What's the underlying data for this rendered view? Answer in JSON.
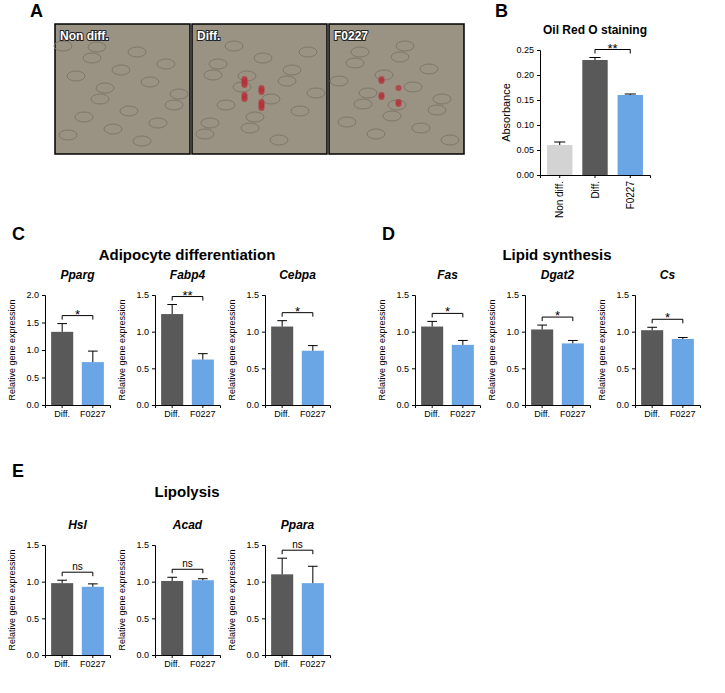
{
  "panels": [
    {
      "letter": "A",
      "images": [
        "Non diff.",
        "Diff.",
        "F0227"
      ]
    },
    {
      "letter": "B"
    },
    {
      "letter": "C",
      "title": "Adipocyte differentiation"
    },
    {
      "letter": "D",
      "title": "Lipid synthesis"
    },
    {
      "letter": "E",
      "title": "Lipolysis"
    }
  ],
  "chart_data": [
    {
      "type": "bar",
      "title": "Oil Red O staining",
      "ylabel": "Absorbance",
      "categories": [
        "Non diff.",
        "Diff.",
        "F0227"
      ],
      "values": [
        0.06,
        0.23,
        0.16
      ],
      "errors": [
        0.006,
        0.005,
        0.002
      ],
      "colors": [
        "#d3d3d3",
        "#595959",
        "#6aa6e6"
      ],
      "ylim": [
        0,
        0.25
      ],
      "yticks": [
        {
          "value": 0,
          "label": "0.00"
        },
        {
          "value": 0.05,
          "label": "0.05"
        },
        {
          "value": 0.1,
          "label": "0.10"
        },
        {
          "value": 0.15,
          "label": "0.15"
        },
        {
          "value": 0.2,
          "label": "0.20"
        },
        {
          "value": 0.25,
          "label": "0.25"
        }
      ],
      "significance": {
        "pair": [
          "Diff.",
          "F0227"
        ],
        "label": "**"
      }
    },
    {
      "type": "bar",
      "title": "Pparg",
      "ylabel": "Relative gene expression",
      "categories": [
        "Diff.",
        "F0227"
      ],
      "values": [
        1.33,
        0.78
      ],
      "errors": [
        0.15,
        0.2
      ],
      "colors": [
        "#595959",
        "#6aa6e6"
      ],
      "ylim": [
        0,
        2
      ],
      "yticks": [
        {
          "value": 0,
          "label": "0.0"
        },
        {
          "value": 0.5,
          "label": "0.5"
        },
        {
          "value": 1,
          "label": "1.0"
        },
        {
          "value": 1.5,
          "label": "1.5"
        },
        {
          "value": 2,
          "label": "2.0"
        }
      ],
      "significance": {
        "pair": [
          "Diff.",
          "F0227"
        ],
        "label": "*"
      }
    },
    {
      "type": "bar",
      "title": "Fabp4",
      "ylabel": "Relative gene expression",
      "categories": [
        "Diff.",
        "F0227"
      ],
      "values": [
        1.24,
        0.62
      ],
      "errors": [
        0.13,
        0.08
      ],
      "colors": [
        "#595959",
        "#6aa6e6"
      ],
      "ylim": [
        0,
        1.5
      ],
      "yticks": [
        {
          "value": 0,
          "label": "0.0"
        },
        {
          "value": 0.5,
          "label": "0.5"
        },
        {
          "value": 1,
          "label": "1.0"
        },
        {
          "value": 1.5,
          "label": "1.5"
        }
      ],
      "significance": {
        "pair": [
          "Diff.",
          "F0227"
        ],
        "label": "**"
      }
    },
    {
      "type": "bar",
      "title": "Cebpa",
      "ylabel": "Relative gene expression",
      "categories": [
        "Diff.",
        "F0227"
      ],
      "values": [
        1.07,
        0.74
      ],
      "errors": [
        0.08,
        0.07
      ],
      "colors": [
        "#595959",
        "#6aa6e6"
      ],
      "ylim": [
        0,
        1.5
      ],
      "yticks": [
        {
          "value": 0,
          "label": "0.0"
        },
        {
          "value": 0.5,
          "label": "0.5"
        },
        {
          "value": 1,
          "label": "1.0"
        },
        {
          "value": 1.5,
          "label": "1.5"
        }
      ],
      "significance": {
        "pair": [
          "Diff.",
          "F0227"
        ],
        "label": "*"
      }
    },
    {
      "type": "bar",
      "title": "Fas",
      "ylabel": "Relative gene expression",
      "categories": [
        "Diff.",
        "F0227"
      ],
      "values": [
        1.07,
        0.82
      ],
      "errors": [
        0.07,
        0.06
      ],
      "colors": [
        "#595959",
        "#6aa6e6"
      ],
      "ylim": [
        0,
        1.5
      ],
      "yticks": [
        {
          "value": 0,
          "label": "0.0"
        },
        {
          "value": 0.5,
          "label": "0.5"
        },
        {
          "value": 1,
          "label": "1.0"
        },
        {
          "value": 1.5,
          "label": "1.5"
        }
      ],
      "significance": {
        "pair": [
          "Diff.",
          "F0227"
        ],
        "label": "*"
      }
    },
    {
      "type": "bar",
      "title": "Dgat2",
      "ylabel": "Relative gene expression",
      "categories": [
        "Diff.",
        "F0227"
      ],
      "values": [
        1.03,
        0.84
      ],
      "errors": [
        0.06,
        0.04
      ],
      "colors": [
        "#595959",
        "#6aa6e6"
      ],
      "ylim": [
        0,
        1.5
      ],
      "yticks": [
        {
          "value": 0,
          "label": "0.0"
        },
        {
          "value": 0.5,
          "label": "0.5"
        },
        {
          "value": 1,
          "label": "1.0"
        },
        {
          "value": 1.5,
          "label": "1.5"
        }
      ],
      "significance": {
        "pair": [
          "Diff.",
          "F0227"
        ],
        "label": "*"
      }
    },
    {
      "type": "bar",
      "title": "Cs",
      "ylabel": "Relative gene expression",
      "categories": [
        "Diff.",
        "F0227"
      ],
      "values": [
        1.02,
        0.9
      ],
      "errors": [
        0.04,
        0.02
      ],
      "colors": [
        "#595959",
        "#6aa6e6"
      ],
      "ylim": [
        0,
        1.5
      ],
      "yticks": [
        {
          "value": 0,
          "label": "0.0"
        },
        {
          "value": 0.5,
          "label": "0.5"
        },
        {
          "value": 1,
          "label": "1.0"
        },
        {
          "value": 1.5,
          "label": "1.5"
        }
      ],
      "significance": {
        "pair": [
          "Diff.",
          "F0227"
        ],
        "label": "*"
      }
    },
    {
      "type": "bar",
      "title": "Hsl",
      "ylabel": "Relative gene expression",
      "categories": [
        "Diff.",
        "F0227"
      ],
      "values": [
        0.98,
        0.93
      ],
      "errors": [
        0.04,
        0.04
      ],
      "colors": [
        "#595959",
        "#6aa6e6"
      ],
      "ylim": [
        0,
        1.5
      ],
      "yticks": [
        {
          "value": 0,
          "label": "0.0"
        },
        {
          "value": 0.5,
          "label": "0.5"
        },
        {
          "value": 1,
          "label": "1.0"
        },
        {
          "value": 1.5,
          "label": "1.5"
        }
      ],
      "significance": {
        "pair": [
          "Diff.",
          "F0227"
        ],
        "label": "ns"
      }
    },
    {
      "type": "bar",
      "title": "Acad",
      "ylabel": "Relative gene expression",
      "categories": [
        "Diff.",
        "F0227"
      ],
      "values": [
        1.01,
        1.02
      ],
      "errors": [
        0.05,
        0.02
      ],
      "colors": [
        "#595959",
        "#6aa6e6"
      ],
      "ylim": [
        0,
        1.5
      ],
      "yticks": [
        {
          "value": 0,
          "label": "0.0"
        },
        {
          "value": 0.5,
          "label": "0.5"
        },
        {
          "value": 1,
          "label": "1.0"
        },
        {
          "value": 1.5,
          "label": "1.5"
        }
      ],
      "significance": {
        "pair": [
          "Diff.",
          "F0227"
        ],
        "label": "ns"
      }
    },
    {
      "type": "bar",
      "title": "Ppara",
      "ylabel": "Relative gene expression",
      "categories": [
        "Diff.",
        "F0227"
      ],
      "values": [
        1.1,
        0.98
      ],
      "errors": [
        0.22,
        0.23
      ],
      "colors": [
        "#595959",
        "#6aa6e6"
      ],
      "ylim": [
        0,
        1.5
      ],
      "yticks": [
        {
          "value": 0,
          "label": "0.0"
        },
        {
          "value": 0.5,
          "label": "0.5"
        },
        {
          "value": 1,
          "label": "1.0"
        },
        {
          "value": 1.5,
          "label": "1.5"
        }
      ],
      "significance": {
        "pair": [
          "Diff.",
          "F0227"
        ],
        "label": "ns"
      }
    }
  ]
}
